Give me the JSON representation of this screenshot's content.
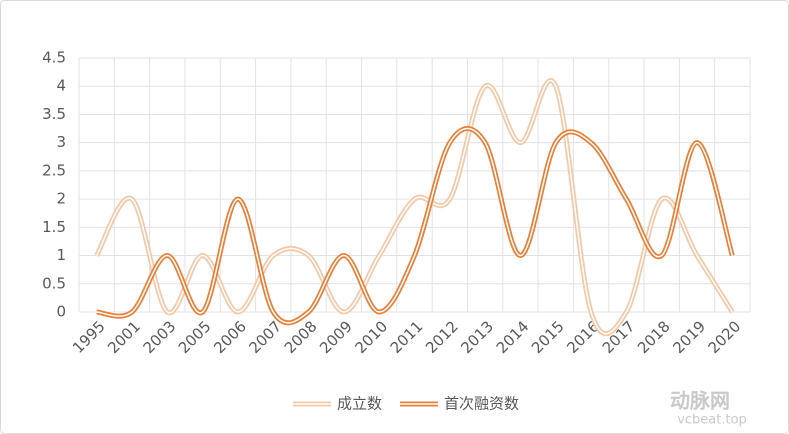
{
  "chart_data": {
    "type": "line",
    "categories": [
      "1995",
      "2001",
      "2003",
      "2005",
      "2006",
      "2007",
      "2008",
      "2009",
      "2010",
      "2011",
      "2012",
      "2013",
      "2014",
      "2015",
      "2016",
      "2017",
      "2018",
      "2019",
      "2020"
    ],
    "series": [
      {
        "name": "成立数",
        "color": "#f5c8a8",
        "values": [
          1,
          2,
          0,
          1,
          0,
          1,
          1,
          0,
          1,
          2,
          2,
          4,
          3,
          4,
          0,
          0,
          2,
          1,
          0
        ]
      },
      {
        "name": "首次融资数",
        "color": "#e8803a",
        "values": [
          0,
          0,
          1,
          0,
          2,
          0,
          0,
          1,
          0,
          1,
          3,
          3,
          1,
          3,
          3,
          2,
          1,
          3,
          1
        ]
      }
    ],
    "ylim": [
      0,
      4.5
    ],
    "yticks": [
      0,
      0.5,
      1,
      1.5,
      2,
      2.5,
      3,
      3.5,
      4,
      4.5
    ],
    "grid": true,
    "smooth": true,
    "legend": "bottom",
    "watermark": "动脉网",
    "watermark_url": "vcbeat.top"
  }
}
